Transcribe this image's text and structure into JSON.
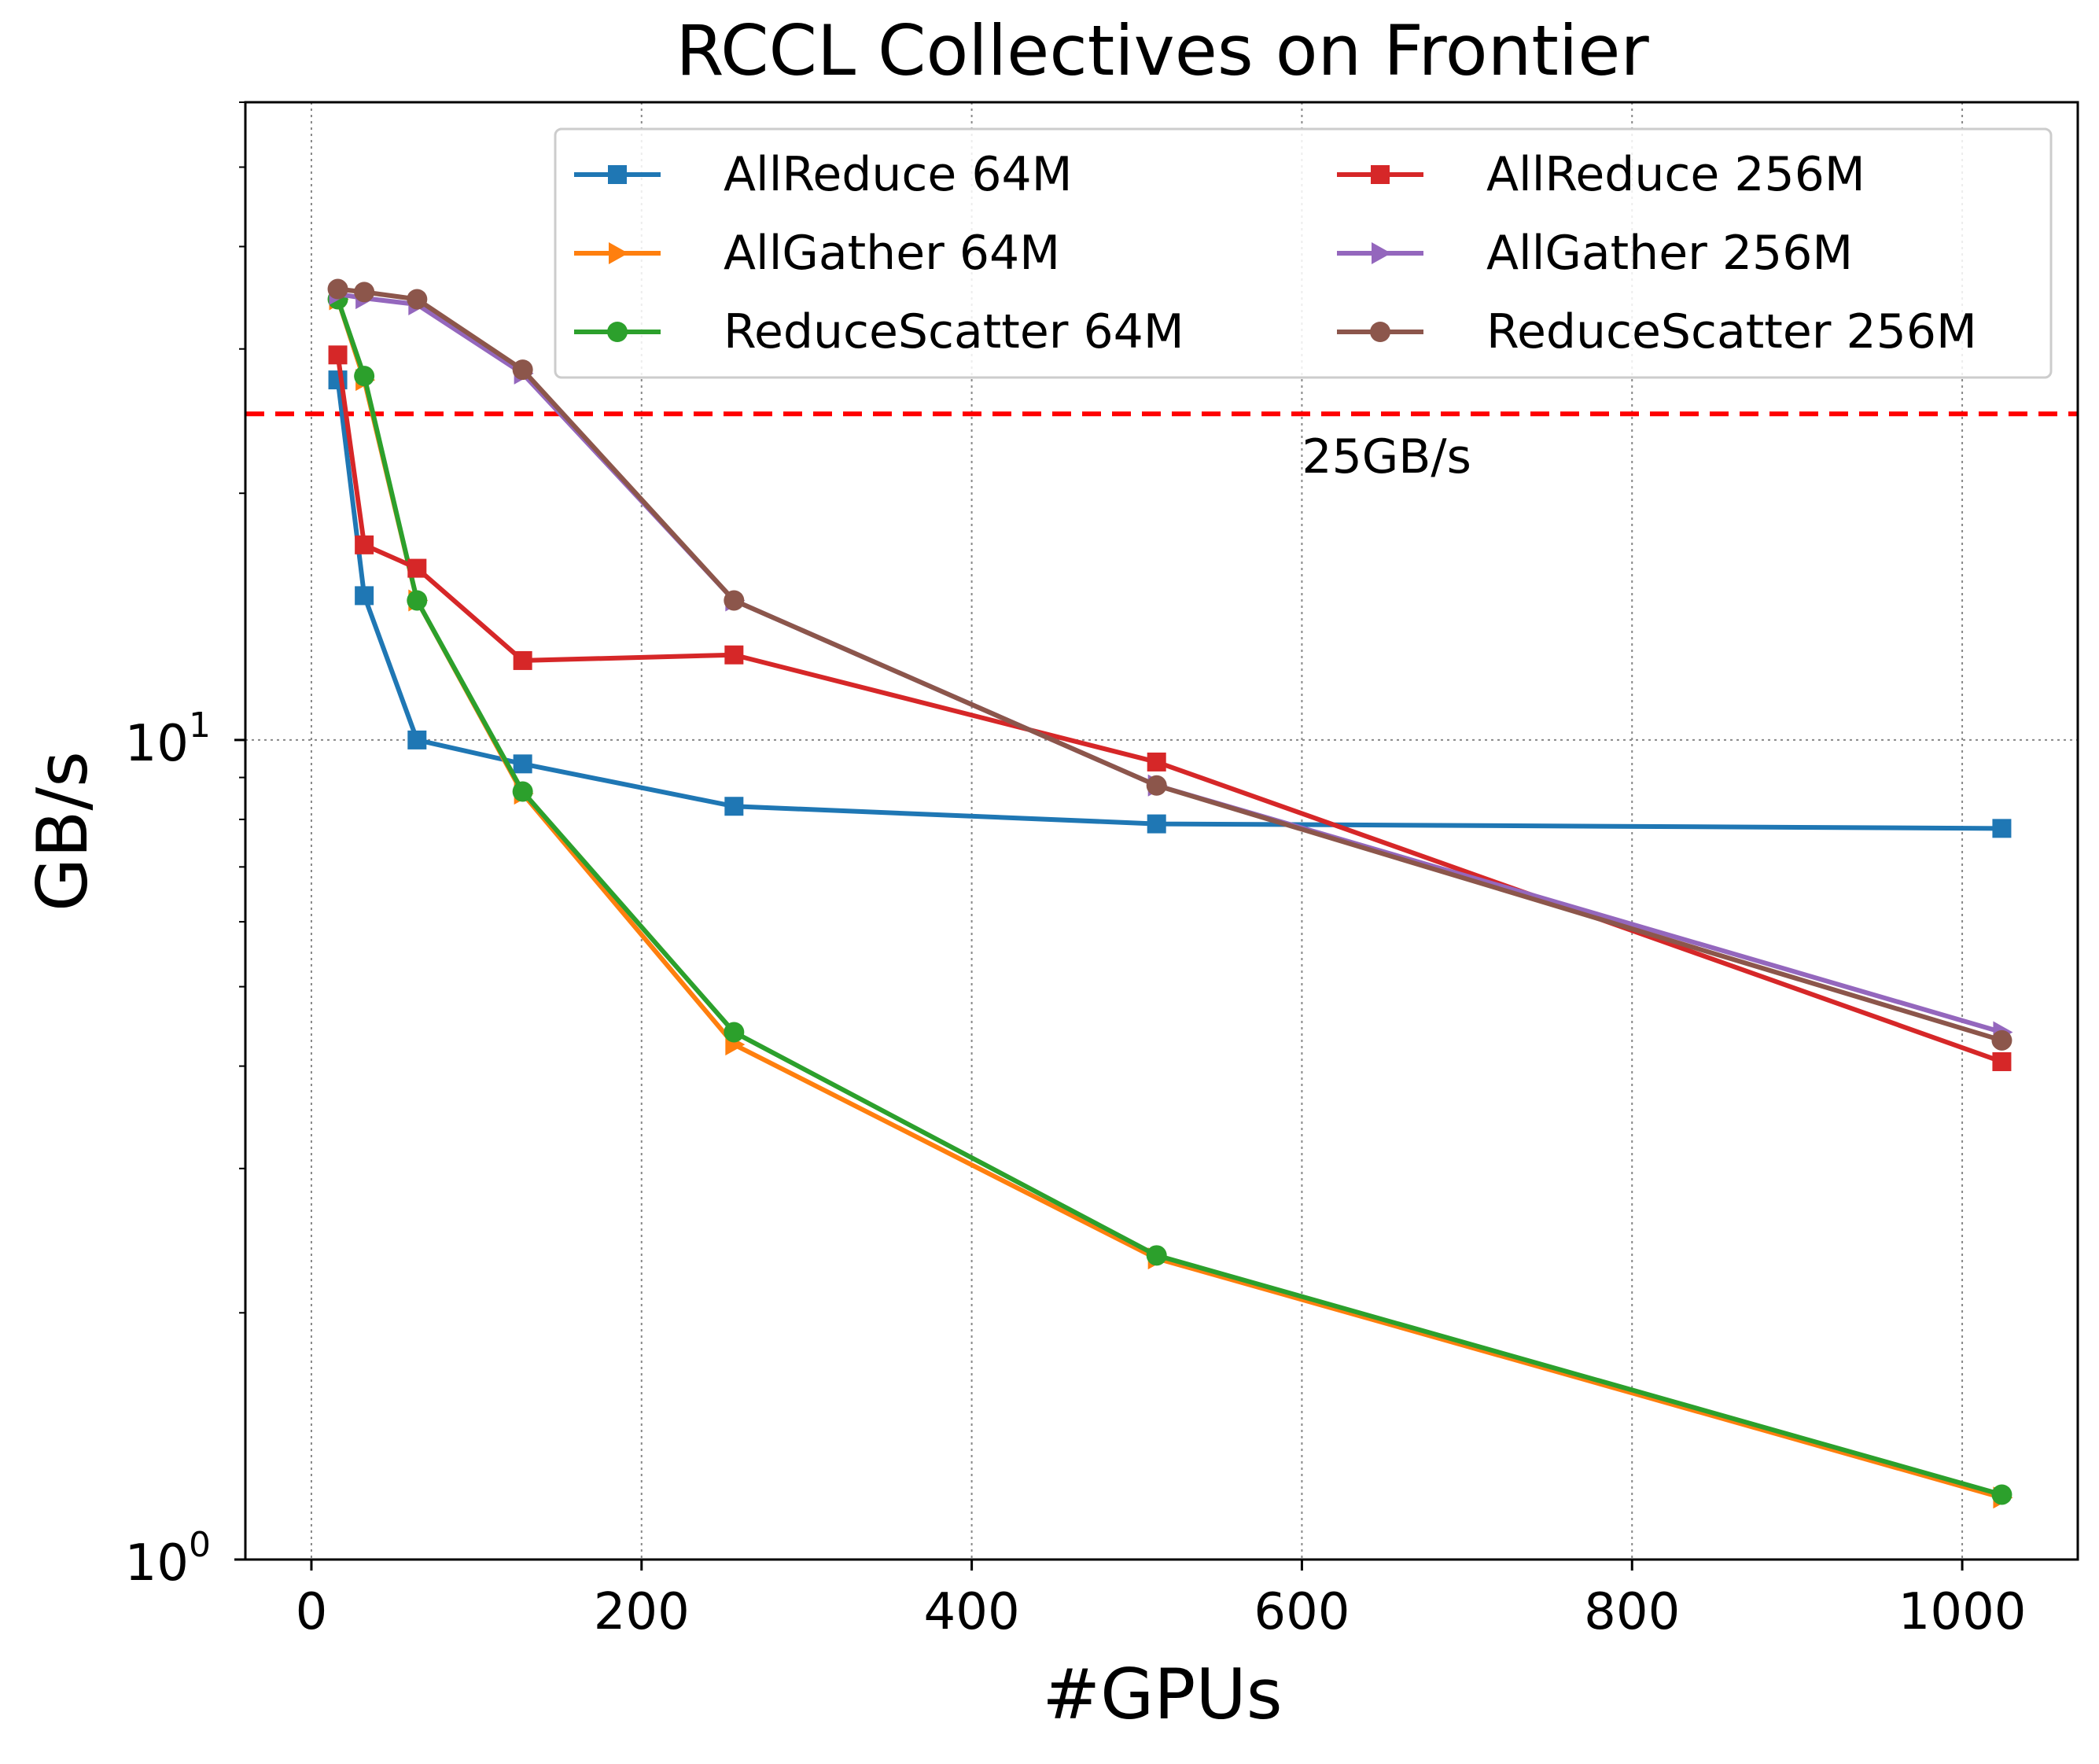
{
  "chart_data": {
    "type": "line",
    "title": "RCCL Collectives on Frontier",
    "xlabel": "#GPUs",
    "ylabel": "GB/s",
    "xlim": [
      -40,
      1070
    ],
    "ylim": [
      1,
      60
    ],
    "yscale": "log",
    "x_ticks": [
      0,
      200,
      400,
      600,
      800,
      1000
    ],
    "x_tick_labels": [
      "0",
      "200",
      "400",
      "600",
      "800",
      "1000"
    ],
    "y_major_ticks": [
      1,
      10
    ],
    "y_tick_labels": [
      {
        "base": "10",
        "exp": "0"
      },
      {
        "base": "10",
        "exp": "1"
      }
    ],
    "grid": true,
    "legend_position": "top-right",
    "x": [
      16,
      32,
      64,
      128,
      256,
      512,
      1024
    ],
    "series": [
      {
        "name": "AllReduce 64M",
        "color": "#1f77b4",
        "marker": "square",
        "values": [
          27.5,
          15.0,
          10.0,
          9.35,
          8.3,
          7.9,
          7.8
        ]
      },
      {
        "name": "AllGather 64M",
        "color": "#ff7f0e",
        "marker": "triangle-right",
        "values": [
          34.5,
          27.5,
          14.8,
          8.6,
          4.25,
          2.33,
          1.19
        ]
      },
      {
        "name": "ReduceScatter 64M",
        "color": "#2ca02c",
        "marker": "circle",
        "values": [
          34.5,
          27.8,
          14.8,
          8.65,
          4.4,
          2.35,
          1.2
        ]
      },
      {
        "name": "AllReduce 256M",
        "color": "#d62728",
        "marker": "square",
        "values": [
          29.5,
          17.3,
          16.2,
          12.5,
          12.7,
          9.4,
          4.05
        ]
      },
      {
        "name": "AllGather 256M",
        "color": "#9467bd",
        "marker": "triangle-right",
        "values": [
          35.0,
          34.6,
          34.0,
          28.0,
          14.8,
          8.8,
          4.4
        ]
      },
      {
        "name": "ReduceScatter 256M",
        "color": "#8c564b",
        "marker": "circle",
        "values": [
          35.5,
          35.2,
          34.5,
          28.3,
          14.8,
          8.8,
          4.3
        ]
      }
    ],
    "reference_line": {
      "value": 25,
      "label": "25GB/s",
      "color": "#ff0000",
      "style": "dashed"
    }
  }
}
